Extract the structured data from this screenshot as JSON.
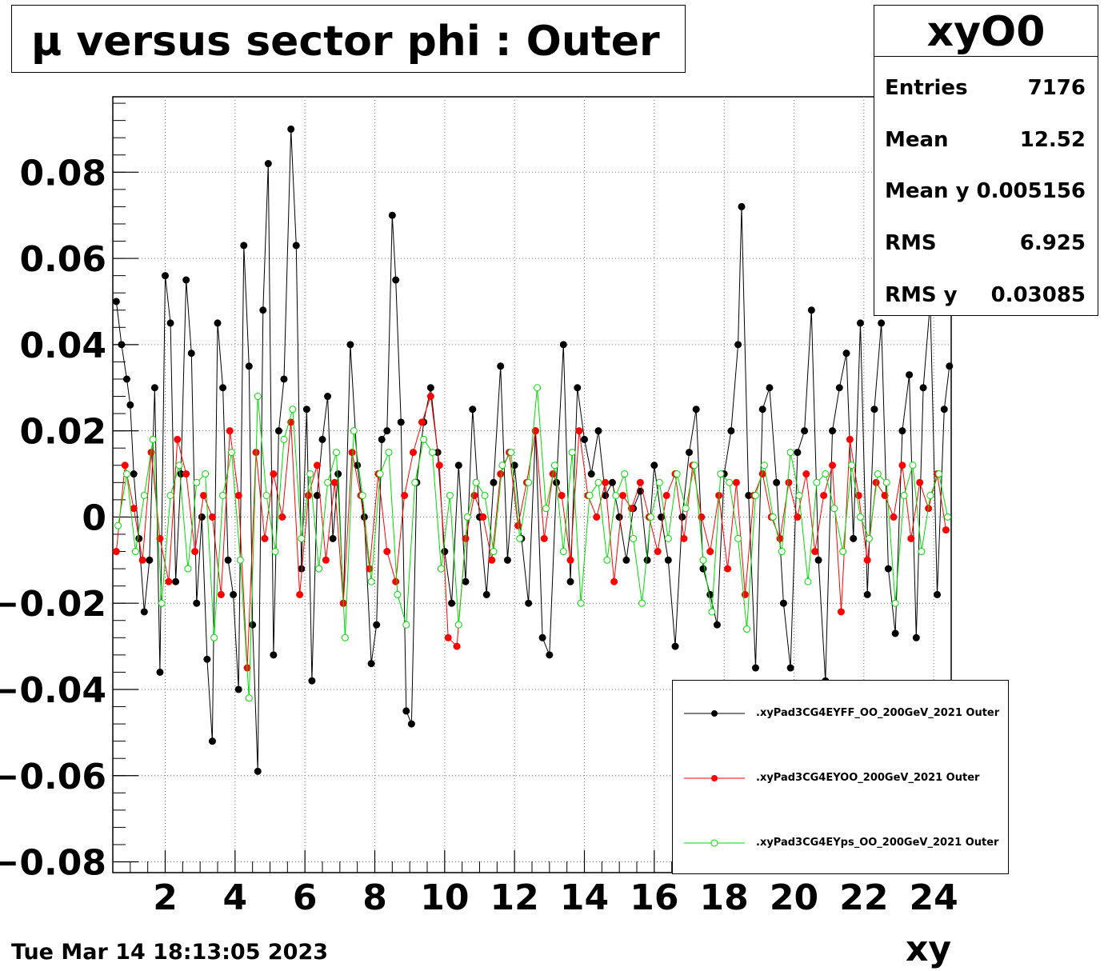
{
  "title": "μ versus sector phi : Outer",
  "stats": {
    "name": "xyO0",
    "rows": [
      {
        "label": "Entries",
        "value": "7176"
      },
      {
        "label": "Mean",
        "value": "12.52"
      },
      {
        "label": "Mean y",
        "value": "0.005156"
      },
      {
        "label": "RMS",
        "value": "6.925"
      },
      {
        "label": "RMS y",
        "value": "0.03085"
      }
    ]
  },
  "legend": [
    {
      "label": ".xyPad3CG4EYFF_OO_200GeV_2021 Outer",
      "color": "#000000",
      "marker": "filled"
    },
    {
      "label": ".xyPad3CG4EYOO_200GeV_2021 Outer",
      "color": "#ff0000",
      "marker": "filled"
    },
    {
      "label": ".xyPad3CG4EYps_OO_200GeV_2021 Outer",
      "color": "#00dd00",
      "marker": "open"
    }
  ],
  "timestamp": "Tue Mar 14 18:13:05 2023",
  "chart_data": {
    "type": "scatter",
    "title": "μ versus sector phi : Outer",
    "xlabel": "xy",
    "ylabel": "",
    "xlim": [
      0.5,
      24.5
    ],
    "ylim": [
      -0.0825,
      0.0975
    ],
    "grid": true,
    "legend_position": "bottom-right",
    "x_ticks": [
      2,
      4,
      6,
      8,
      10,
      12,
      14,
      16,
      18,
      20,
      22,
      24
    ],
    "y_ticks": [
      -0.08,
      -0.06,
      -0.04,
      -0.02,
      0,
      0.02,
      0.04,
      0.06,
      0.08
    ],
    "x_tick_labels": [
      "2",
      "4",
      "6",
      "8",
      "10",
      "12",
      "14",
      "16",
      "18",
      "20",
      "22",
      "24"
    ],
    "y_tick_labels": [
      "−0.08",
      "−0.06",
      "−0.04",
      "−0.02",
      "0",
      "0.02",
      "0.04",
      "0.06",
      "0.08"
    ],
    "series": [
      {
        "name": ".xyPad3CG4EYFF_OO_200GeV_2021 Outer",
        "color": "#000000",
        "marker": "filled-circle",
        "x": [
          0.6,
          0.75,
          0.9,
          1.0,
          1.1,
          1.25,
          1.4,
          1.55,
          1.7,
          1.85,
          2.0,
          2.15,
          2.3,
          2.45,
          2.6,
          2.75,
          2.9,
          3.05,
          3.2,
          3.35,
          3.5,
          3.65,
          3.8,
          3.95,
          4.1,
          4.25,
          4.4,
          4.5,
          4.65,
          4.8,
          4.95,
          5.1,
          5.25,
          5.4,
          5.6,
          5.75,
          5.9,
          6.05,
          6.2,
          6.35,
          6.5,
          6.65,
          6.8,
          6.95,
          7.1,
          7.3,
          7.5,
          7.7,
          7.9,
          8.05,
          8.2,
          8.35,
          8.5,
          8.6,
          8.75,
          8.9,
          9.05,
          9.2,
          9.4,
          9.6,
          9.8,
          10.0,
          10.2,
          10.4,
          10.6,
          10.8,
          11.0,
          11.2,
          11.4,
          11.6,
          11.8,
          12.0,
          12.2,
          12.4,
          12.6,
          12.8,
          13.0,
          13.2,
          13.4,
          13.6,
          13.8,
          14.0,
          14.2,
          14.4,
          14.6,
          14.8,
          15.0,
          15.2,
          15.4,
          15.6,
          15.8,
          16.0,
          16.2,
          16.4,
          16.6,
          16.8,
          17.0,
          17.2,
          17.4,
          17.6,
          17.8,
          18.0,
          18.2,
          18.4,
          18.5,
          18.7,
          18.9,
          19.1,
          19.3,
          19.5,
          19.7,
          19.9,
          20.1,
          20.3,
          20.5,
          20.7,
          20.9,
          21.1,
          21.3,
          21.5,
          21.7,
          21.9,
          22.1,
          22.3,
          22.5,
          22.7,
          22.9,
          23.1,
          23.3,
          23.5,
          23.7,
          23.9,
          24.1,
          24.3,
          24.45
        ],
        "y": [
          0.05,
          0.04,
          0.032,
          0.026,
          0.01,
          -0.005,
          -0.022,
          -0.01,
          0.03,
          -0.036,
          0.056,
          0.045,
          -0.015,
          0.01,
          0.055,
          0.038,
          -0.02,
          0.0,
          -0.033,
          -0.052,
          0.045,
          0.03,
          -0.01,
          -0.018,
          -0.04,
          0.063,
          0.035,
          -0.025,
          -0.059,
          0.048,
          0.082,
          -0.032,
          0.02,
          0.032,
          0.09,
          0.063,
          -0.012,
          0.025,
          -0.038,
          0.005,
          0.018,
          0.028,
          -0.005,
          0.01,
          -0.02,
          0.04,
          0.012,
          0.0,
          -0.034,
          -0.025,
          0.018,
          0.02,
          0.07,
          0.055,
          0.022,
          -0.045,
          -0.048,
          0.008,
          0.022,
          0.03,
          0.015,
          -0.008,
          -0.02,
          0.012,
          -0.015,
          0.025,
          0.0,
          -0.018,
          0.008,
          0.035,
          -0.01,
          0.012,
          -0.005,
          -0.02,
          0.02,
          -0.028,
          -0.032,
          0.008,
          0.04,
          -0.015,
          0.03,
          0.018,
          0.01,
          0.02,
          0.005,
          0.008,
          0.0,
          -0.01,
          0.002,
          0.006,
          -0.01,
          0.012,
          0.0,
          -0.01,
          -0.03,
          0.0,
          0.015,
          0.025,
          -0.012,
          -0.018,
          -0.025,
          0.01,
          0.02,
          0.04,
          0.072,
          0.005,
          -0.035,
          0.025,
          0.03,
          0.008,
          -0.02,
          -0.035,
          0.015,
          0.02,
          0.048,
          -0.01,
          -0.038,
          0.02,
          0.03,
          0.038,
          -0.005,
          0.045,
          -0.018,
          0.025,
          0.045,
          -0.012,
          -0.027,
          0.02,
          0.033,
          -0.028,
          0.03,
          0.05,
          -0.018,
          0.025,
          0.035
        ]
      },
      {
        "name": ".xyPad3CG4EYOO_200GeV_2021 Outer",
        "color": "#ff0000",
        "marker": "filled-circle",
        "x": [
          0.6,
          0.85,
          1.1,
          1.35,
          1.6,
          1.85,
          2.1,
          2.35,
          2.6,
          2.85,
          3.1,
          3.35,
          3.6,
          3.85,
          4.1,
          4.35,
          4.6,
          4.85,
          5.1,
          5.35,
          5.6,
          5.85,
          6.1,
          6.35,
          6.6,
          6.85,
          7.1,
          7.35,
          7.6,
          7.85,
          8.1,
          8.35,
          8.6,
          8.85,
          9.1,
          9.35,
          9.6,
          9.85,
          10.1,
          10.35,
          10.6,
          10.85,
          11.1,
          11.35,
          11.6,
          11.85,
          12.1,
          12.35,
          12.6,
          12.85,
          13.1,
          13.35,
          13.6,
          13.85,
          14.1,
          14.35,
          14.6,
          14.85,
          15.1,
          15.35,
          15.6,
          15.85,
          16.1,
          16.35,
          16.6,
          16.85,
          17.1,
          17.35,
          17.6,
          17.85,
          18.1,
          18.35,
          18.6,
          18.85,
          19.1,
          19.35,
          19.6,
          19.85,
          20.1,
          20.35,
          20.6,
          20.85,
          21.1,
          21.35,
          21.6,
          21.85,
          22.1,
          22.35,
          22.6,
          22.85,
          23.1,
          23.35,
          23.6,
          23.85,
          24.1,
          24.35
        ],
        "y": [
          -0.008,
          0.012,
          0.002,
          -0.01,
          0.015,
          -0.005,
          -0.015,
          0.018,
          0.01,
          -0.008,
          0.005,
          0.0,
          -0.018,
          0.02,
          0.005,
          -0.035,
          0.015,
          -0.005,
          0.01,
          0.0,
          0.022,
          -0.018,
          0.005,
          0.012,
          -0.01,
          0.008,
          -0.02,
          0.015,
          0.005,
          -0.012,
          0.01,
          -0.008,
          -0.015,
          0.005,
          0.015,
          0.022,
          0.028,
          0.012,
          -0.028,
          -0.03,
          -0.005,
          0.005,
          0.0,
          -0.01,
          0.01,
          0.015,
          -0.002,
          0.008,
          0.02,
          -0.005,
          0.01,
          0.005,
          -0.01,
          0.02,
          0.005,
          0.0,
          0.008,
          -0.015,
          0.005,
          0.002,
          0.008,
          0.0,
          -0.008,
          0.005,
          0.01,
          -0.005,
          0.012,
          0.0,
          -0.008,
          0.005,
          -0.012,
          0.008,
          -0.018,
          0.005,
          0.01,
          0.0,
          -0.005,
          0.008,
          0.0,
          0.01,
          -0.008,
          0.005,
          0.012,
          -0.022,
          0.018,
          0.005,
          -0.01,
          0.008,
          0.005,
          0.0,
          0.012,
          -0.005,
          0.008,
          0.002,
          0.01,
          -0.003
        ]
      },
      {
        "name": ".xyPad3CG4EYps_OO_200GeV_2021 Outer",
        "color": "#00dd00",
        "marker": "open-circle",
        "x": [
          0.65,
          0.9,
          1.15,
          1.4,
          1.65,
          1.9,
          2.15,
          2.4,
          2.65,
          2.9,
          3.15,
          3.4,
          3.65,
          3.9,
          4.15,
          4.4,
          4.65,
          4.9,
          5.15,
          5.4,
          5.65,
          5.9,
          6.15,
          6.4,
          6.65,
          6.9,
          7.15,
          7.4,
          7.65,
          7.9,
          8.15,
          8.4,
          8.65,
          8.9,
          9.15,
          9.4,
          9.65,
          9.9,
          10.15,
          10.4,
          10.65,
          10.9,
          11.15,
          11.4,
          11.65,
          11.9,
          12.15,
          12.4,
          12.65,
          12.9,
          13.15,
          13.4,
          13.65,
          13.9,
          14.15,
          14.4,
          14.65,
          14.9,
          15.15,
          15.4,
          15.65,
          15.9,
          16.15,
          16.4,
          16.65,
          16.9,
          17.15,
          17.4,
          17.65,
          17.9,
          18.15,
          18.4,
          18.65,
          18.9,
          19.15,
          19.4,
          19.65,
          19.9,
          20.15,
          20.4,
          20.65,
          20.9,
          21.15,
          21.4,
          21.65,
          21.9,
          22.15,
          22.4,
          22.65,
          22.9,
          23.15,
          23.4,
          23.65,
          23.9,
          24.15,
          24.4
        ],
        "y": [
          -0.002,
          0.01,
          -0.008,
          0.005,
          0.018,
          -0.02,
          0.005,
          0.012,
          -0.012,
          0.008,
          0.01,
          -0.028,
          0.005,
          0.015,
          -0.01,
          -0.042,
          0.028,
          0.005,
          -0.008,
          0.018,
          0.025,
          -0.005,
          0.01,
          -0.012,
          0.008,
          0.015,
          -0.028,
          0.02,
          0.005,
          -0.015,
          0.01,
          0.015,
          -0.018,
          -0.025,
          0.008,
          0.018,
          0.015,
          -0.012,
          0.005,
          -0.025,
          0.0,
          0.008,
          0.005,
          -0.008,
          0.012,
          0.015,
          -0.005,
          0.008,
          0.03,
          0.002,
          0.012,
          -0.008,
          0.015,
          -0.02,
          0.005,
          0.008,
          -0.01,
          0.005,
          0.01,
          -0.005,
          -0.02,
          0.0,
          0.008,
          -0.005,
          0.01,
          0.002,
          0.012,
          -0.01,
          -0.022,
          0.01,
          0.008,
          -0.005,
          -0.026,
          0.005,
          0.012,
          0.0,
          -0.008,
          0.015,
          0.005,
          -0.015,
          0.008,
          0.01,
          0.002,
          -0.008,
          0.012,
          0.0,
          -0.005,
          0.01,
          0.008,
          -0.02,
          0.005,
          0.012,
          -0.008,
          0.005,
          0.01,
          0.0
        ]
      }
    ]
  }
}
